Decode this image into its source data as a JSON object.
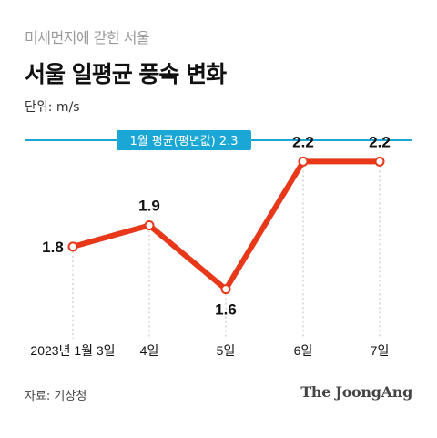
{
  "header": {
    "subtitle": "미세먼지에 갇힌 서울",
    "title": "서울 일평균 풍속 변화",
    "unit": "단위: m/s"
  },
  "footer": {
    "source": "자료: 기상청",
    "brand": "The JoongAng"
  },
  "colors": {
    "line": "#e8381a",
    "reference": "#1aa7d6",
    "point_fill": "#ffffff"
  },
  "chart_data": {
    "type": "line",
    "categories": [
      "2023년 1월 3일",
      "4일",
      "5일",
      "6일",
      "7일"
    ],
    "values": [
      1.8,
      1.9,
      1.6,
      2.2,
      2.2
    ],
    "value_labels": [
      "1.8",
      "1.9",
      "1.6",
      "2.2",
      "2.2"
    ],
    "reference_line": {
      "label": "1월 평균(평년값) 2.3",
      "value": 2.3
    },
    "ylim": [
      1.5,
      2.3
    ],
    "grid": false,
    "legend": "none"
  }
}
